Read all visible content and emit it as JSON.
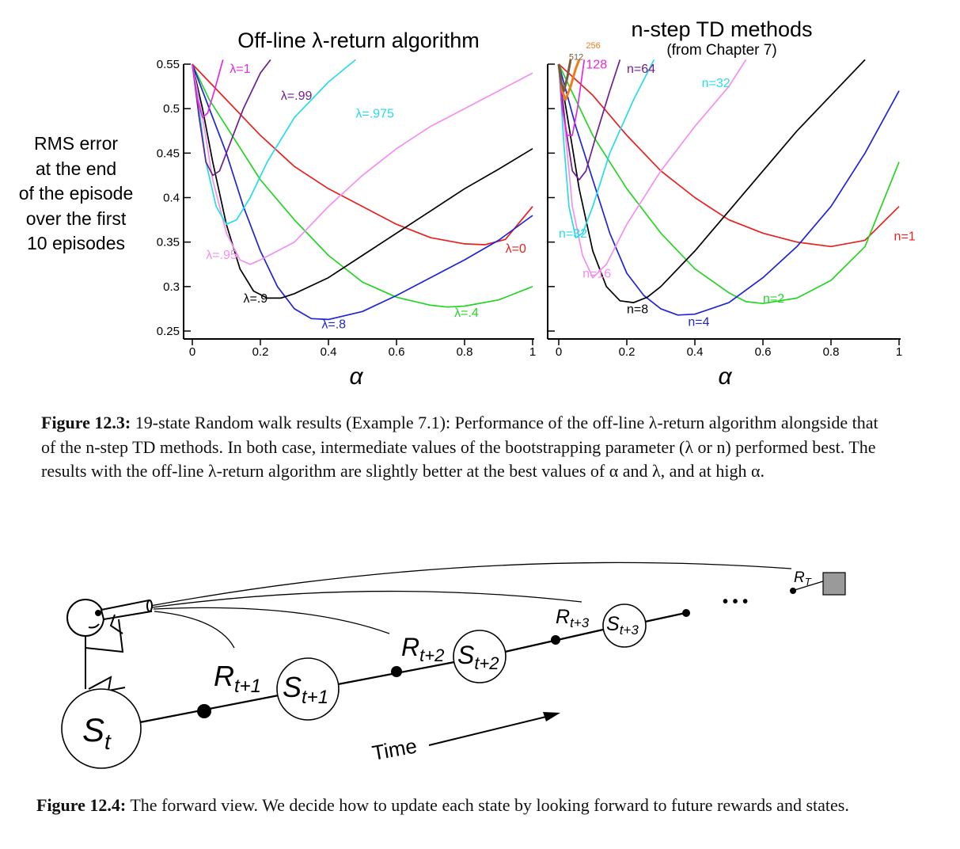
{
  "figure_12_3": {
    "y_axis_label_lines": [
      "RMS error",
      "at the end",
      "of the episode",
      "over the first",
      "10 episodes"
    ],
    "x_axis_symbol": "α",
    "caption": {
      "label": "Figure 12.3:",
      "text": "19-state Random walk results (Example 7.1): Performance of the off-line λ-return algorithm alongside that of the n-step TD methods. In both case, intermediate values of the bootstrapping parameter (λ or n) performed best. The results with the off-line λ-return algorithm are slightly better at the best values of α and λ, and at high α."
    }
  },
  "chart_data": [
    {
      "type": "line",
      "title": "Off-line λ-return algorithm",
      "subtitle": "",
      "xlabel": "α",
      "ylabel": "RMS error at the end of the episode over the first 10 episodes",
      "xlim": [
        0,
        1
      ],
      "ylim": [
        0.25,
        0.55
      ],
      "xticks": [
        "0",
        "0.2",
        "0.4",
        "0.6",
        "0.8",
        "1"
      ],
      "yticks": [
        "0.25",
        "0.3",
        "0.35",
        "0.4",
        "0.45",
        "0.5",
        "0.55"
      ],
      "grid": false,
      "series": [
        {
          "name": "λ=0",
          "color": "#e8201e",
          "points": [
            [
              0,
              0.55
            ],
            [
              0.1,
              0.51
            ],
            [
              0.2,
              0.47
            ],
            [
              0.3,
              0.435
            ],
            [
              0.4,
              0.41
            ],
            [
              0.5,
              0.39
            ],
            [
              0.6,
              0.37
            ],
            [
              0.7,
              0.355
            ],
            [
              0.8,
              0.348
            ],
            [
              0.86,
              0.347
            ],
            [
              0.92,
              0.353
            ],
            [
              1.0,
              0.39
            ]
          ]
        },
        {
          "name": "λ=.4",
          "color": "#25d425",
          "points": [
            [
              0,
              0.55
            ],
            [
              0.05,
              0.51
            ],
            [
              0.1,
              0.48
            ],
            [
              0.2,
              0.42
            ],
            [
              0.3,
              0.375
            ],
            [
              0.4,
              0.335
            ],
            [
              0.5,
              0.305
            ],
            [
              0.6,
              0.288
            ],
            [
              0.7,
              0.279
            ],
            [
              0.75,
              0.277
            ],
            [
              0.8,
              0.278
            ],
            [
              0.9,
              0.285
            ],
            [
              1.0,
              0.3
            ]
          ]
        },
        {
          "name": "λ=.8",
          "color": "#1f24d6",
          "points": [
            [
              0,
              0.55
            ],
            [
              0.05,
              0.5
            ],
            [
              0.1,
              0.45
            ],
            [
              0.15,
              0.39
            ],
            [
              0.2,
              0.34
            ],
            [
              0.25,
              0.3
            ],
            [
              0.3,
              0.275
            ],
            [
              0.35,
              0.264
            ],
            [
              0.4,
              0.263
            ],
            [
              0.5,
              0.272
            ],
            [
              0.6,
              0.29
            ],
            [
              0.7,
              0.31
            ],
            [
              0.8,
              0.33
            ],
            [
              0.9,
              0.352
            ],
            [
              1.0,
              0.38
            ]
          ]
        },
        {
          "name": "λ=.9",
          "color": "#000000",
          "points": [
            [
              0,
              0.55
            ],
            [
              0.03,
              0.5
            ],
            [
              0.06,
              0.44
            ],
            [
              0.1,
              0.37
            ],
            [
              0.14,
              0.32
            ],
            [
              0.18,
              0.295
            ],
            [
              0.22,
              0.287
            ],
            [
              0.26,
              0.287
            ],
            [
              0.3,
              0.292
            ],
            [
              0.4,
              0.31
            ],
            [
              0.5,
              0.335
            ],
            [
              0.6,
              0.36
            ],
            [
              0.7,
              0.385
            ],
            [
              0.8,
              0.41
            ],
            [
              0.9,
              0.432
            ],
            [
              1.0,
              0.455
            ]
          ]
        },
        {
          "name": "λ=.95",
          "color": "#f48ef0",
          "points": [
            [
              0,
              0.55
            ],
            [
              0.03,
              0.49
            ],
            [
              0.06,
              0.42
            ],
            [
              0.1,
              0.36
            ],
            [
              0.14,
              0.33
            ],
            [
              0.17,
              0.325
            ],
            [
              0.2,
              0.33
            ],
            [
              0.3,
              0.35
            ],
            [
              0.4,
              0.39
            ],
            [
              0.5,
              0.425
            ],
            [
              0.6,
              0.455
            ],
            [
              0.7,
              0.48
            ],
            [
              0.8,
              0.5
            ],
            [
              0.9,
              0.52
            ],
            [
              1.0,
              0.54
            ]
          ]
        },
        {
          "name": "λ=.975",
          "color": "#25dcea",
          "points": [
            [
              0,
              0.55
            ],
            [
              0.02,
              0.5
            ],
            [
              0.04,
              0.44
            ],
            [
              0.07,
              0.39
            ],
            [
              0.1,
              0.37
            ],
            [
              0.13,
              0.375
            ],
            [
              0.17,
              0.4
            ],
            [
              0.22,
              0.44
            ],
            [
              0.3,
              0.49
            ],
            [
              0.4,
              0.53
            ],
            [
              0.48,
              0.555
            ]
          ]
        },
        {
          "name": "λ=.99",
          "color": "#6e1f8f",
          "points": [
            [
              0,
              0.55
            ],
            [
              0.02,
              0.49
            ],
            [
              0.04,
              0.44
            ],
            [
              0.06,
              0.425
            ],
            [
              0.08,
              0.43
            ],
            [
              0.11,
              0.46
            ],
            [
              0.15,
              0.5
            ],
            [
              0.2,
              0.54
            ],
            [
              0.23,
              0.555
            ]
          ]
        },
        {
          "name": "λ=1",
          "color": "#e32ae0",
          "points": [
            [
              0,
              0.55
            ],
            [
              0.015,
              0.51
            ],
            [
              0.03,
              0.49
            ],
            [
              0.045,
              0.495
            ],
            [
              0.065,
              0.52
            ],
            [
              0.09,
              0.555
            ]
          ]
        }
      ]
    },
    {
      "type": "line",
      "title": "n-step TD methods",
      "subtitle": "(from Chapter 7)",
      "xlabel": "α",
      "ylabel": "",
      "xlim": [
        0,
        1
      ],
      "ylim": [
        0.25,
        0.55
      ],
      "xticks": [
        "0",
        "0.2",
        "0.4",
        "0.6",
        "0.8",
        "1"
      ],
      "grid": false,
      "series": [
        {
          "name": "n=1",
          "color": "#e8201e",
          "points": [
            [
              0,
              0.55
            ],
            [
              0.1,
              0.515
            ],
            [
              0.2,
              0.47
            ],
            [
              0.3,
              0.43
            ],
            [
              0.4,
              0.4
            ],
            [
              0.5,
              0.375
            ],
            [
              0.6,
              0.36
            ],
            [
              0.7,
              0.35
            ],
            [
              0.8,
              0.345
            ],
            [
              0.9,
              0.352
            ],
            [
              1.0,
              0.39
            ]
          ]
        },
        {
          "name": "n=2",
          "color": "#25d425",
          "points": [
            [
              0,
              0.55
            ],
            [
              0.1,
              0.47
            ],
            [
              0.2,
              0.41
            ],
            [
              0.3,
              0.36
            ],
            [
              0.4,
              0.32
            ],
            [
              0.5,
              0.293
            ],
            [
              0.55,
              0.283
            ],
            [
              0.6,
              0.281
            ],
            [
              0.7,
              0.287
            ],
            [
              0.8,
              0.307
            ],
            [
              0.9,
              0.345
            ],
            [
              1.0,
              0.44
            ]
          ]
        },
        {
          "name": "n=4",
          "color": "#1f24d6",
          "points": [
            [
              0,
              0.55
            ],
            [
              0.05,
              0.48
            ],
            [
              0.1,
              0.42
            ],
            [
              0.15,
              0.36
            ],
            [
              0.2,
              0.315
            ],
            [
              0.25,
              0.29
            ],
            [
              0.3,
              0.275
            ],
            [
              0.35,
              0.268
            ],
            [
              0.4,
              0.269
            ],
            [
              0.5,
              0.282
            ],
            [
              0.6,
              0.31
            ],
            [
              0.7,
              0.345
            ],
            [
              0.8,
              0.39
            ],
            [
              0.9,
              0.45
            ],
            [
              1.0,
              0.52
            ]
          ]
        },
        {
          "name": "n=8",
          "color": "#000000",
          "points": [
            [
              0,
              0.55
            ],
            [
              0.03,
              0.48
            ],
            [
              0.06,
              0.41
            ],
            [
              0.1,
              0.34
            ],
            [
              0.14,
              0.3
            ],
            [
              0.18,
              0.284
            ],
            [
              0.22,
              0.282
            ],
            [
              0.26,
              0.288
            ],
            [
              0.3,
              0.3
            ],
            [
              0.4,
              0.34
            ],
            [
              0.5,
              0.385
            ],
            [
              0.6,
              0.43
            ],
            [
              0.7,
              0.475
            ],
            [
              0.8,
              0.515
            ],
            [
              0.9,
              0.555
            ]
          ]
        },
        {
          "name": "n=16",
          "color": "#f48ef0",
          "points": [
            [
              0,
              0.55
            ],
            [
              0.02,
              0.47
            ],
            [
              0.04,
              0.39
            ],
            [
              0.07,
              0.335
            ],
            [
              0.1,
              0.31
            ],
            [
              0.14,
              0.325
            ],
            [
              0.2,
              0.37
            ],
            [
              0.3,
              0.43
            ],
            [
              0.4,
              0.48
            ],
            [
              0.5,
              0.525
            ],
            [
              0.55,
              0.555
            ]
          ]
        },
        {
          "name": "n=32",
          "color": "#25dcea",
          "points": [
            [
              0,
              0.55
            ],
            [
              0.015,
              0.46
            ],
            [
              0.03,
              0.39
            ],
            [
              0.05,
              0.355
            ],
            [
              0.07,
              0.36
            ],
            [
              0.1,
              0.39
            ],
            [
              0.15,
              0.45
            ],
            [
              0.22,
              0.51
            ],
            [
              0.28,
              0.555
            ]
          ]
        },
        {
          "name": "n=64",
          "color": "#6e1f8f",
          "points": [
            [
              0,
              0.55
            ],
            [
              0.02,
              0.48
            ],
            [
              0.04,
              0.43
            ],
            [
              0.06,
              0.42
            ],
            [
              0.08,
              0.43
            ],
            [
              0.11,
              0.47
            ],
            [
              0.15,
              0.52
            ],
            [
              0.18,
              0.555
            ]
          ]
        },
        {
          "name": "128",
          "color": "#e32ae0",
          "points": [
            [
              0,
              0.55
            ],
            [
              0.01,
              0.5
            ],
            [
              0.025,
              0.47
            ],
            [
              0.04,
              0.47
            ],
            [
              0.055,
              0.5
            ],
            [
              0.075,
              0.555
            ]
          ]
        },
        {
          "name": "256",
          "color": "#f07b1d",
          "points": [
            [
              0,
              0.55
            ],
            [
              0.01,
              0.52
            ],
            [
              0.02,
              0.51
            ],
            [
              0.035,
              0.525
            ],
            [
              0.05,
              0.545
            ],
            [
              0.065,
              0.56
            ]
          ]
        },
        {
          "name": "512",
          "color": "#7a5a3a",
          "points": [
            [
              0,
              0.55
            ],
            [
              0.007,
              0.53
            ],
            [
              0.015,
              0.52
            ],
            [
              0.025,
              0.535
            ],
            [
              0.035,
              0.555
            ]
          ]
        }
      ]
    }
  ],
  "figure_12_4": {
    "labels": {
      "st": "S",
      "st_sub": "t",
      "r1": "R",
      "r1_sub": "t+1",
      "s1": "S",
      "s1_sub": "t+1",
      "r2": "R",
      "r2_sub": "t+2",
      "s2": "S",
      "s2_sub": "t+2",
      "r3": "R",
      "r3_sub": "t+3",
      "s3": "S",
      "s3_sub": "t+3",
      "rT": "R",
      "rT_sub": "T",
      "ellipsis": "• • •",
      "time": "Time"
    },
    "caption": {
      "label": "Figure 12.4:",
      "text": "The forward view. We decide how to update each state by looking forward to future rewards and states."
    }
  }
}
